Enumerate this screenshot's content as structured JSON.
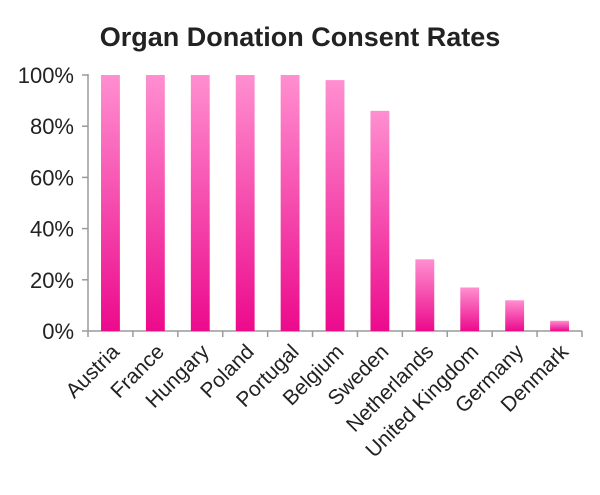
{
  "chart_data": {
    "type": "bar",
    "title": "Organ Donation Consent Rates",
    "xlabel": "",
    "ylabel": "",
    "categories": [
      "Austria",
      "France",
      "Hungary",
      "Poland",
      "Portugal",
      "Belgium",
      "Sweden",
      "Netherlands",
      "United Kingdom",
      "Germany",
      "Denmark"
    ],
    "values": [
      100,
      100,
      100,
      100,
      100,
      98,
      86,
      28,
      17,
      12,
      4
    ],
    "ylim": [
      0,
      100
    ],
    "yticks": [
      0,
      20,
      40,
      60,
      80,
      100
    ],
    "ytick_labels": [
      "0%",
      "20%",
      "40%",
      "60%",
      "80%",
      "100%"
    ],
    "grid": false,
    "legend": "none",
    "colors": {
      "bar_top": "#ff8fd0",
      "bar_bottom": "#ec0a8c",
      "axis": "#9a9a9a",
      "text": "#222222"
    }
  }
}
